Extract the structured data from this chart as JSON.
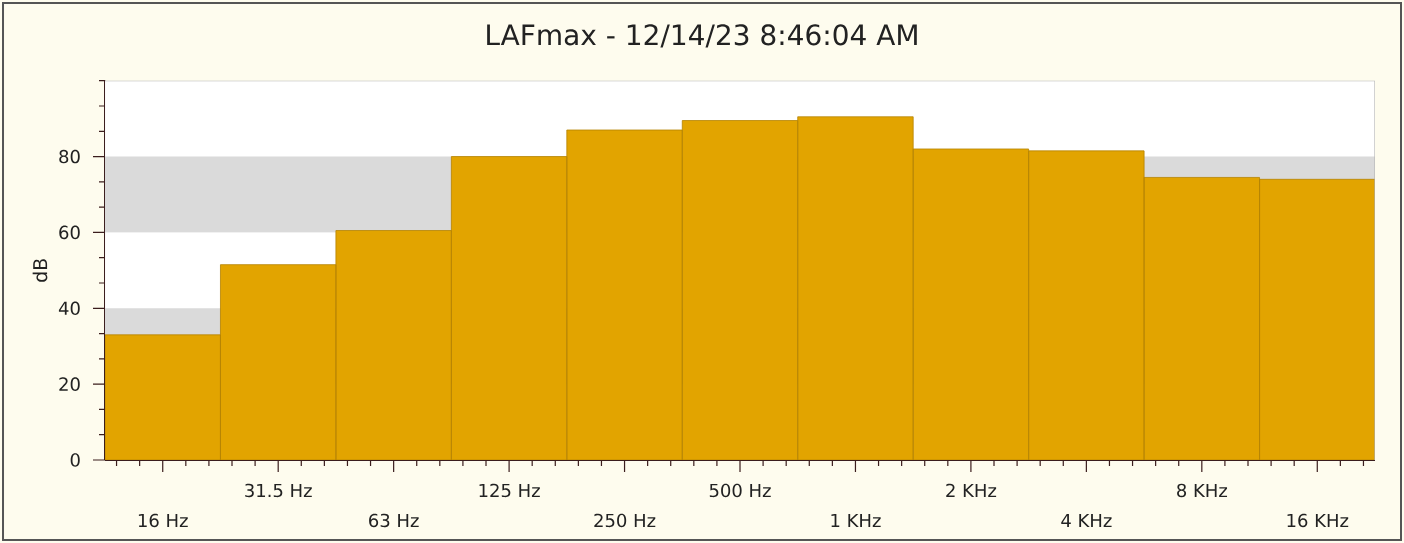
{
  "chart_data": {
    "type": "bar",
    "title": "LAFmax - 12/14/23 8:46:04 AM",
    "ylabel": "dB",
    "categories": [
      "16 Hz",
      "31.5 Hz",
      "63 Hz",
      "125 Hz",
      "250 Hz",
      "500 Hz",
      "1 KHz",
      "2 KHz",
      "4 KHz",
      "8 KHz",
      "16 KHz"
    ],
    "values": [
      33,
      51.5,
      60.5,
      80,
      87,
      89.5,
      90.5,
      82,
      81.5,
      74.5,
      74
    ],
    "color": "#e2a400",
    "ylim": [
      0,
      100
    ],
    "yticks": [
      0,
      20,
      40,
      60,
      80
    ],
    "bands": [
      {
        "axis": "y",
        "from": 20,
        "to": 40,
        "color": "#dadada"
      },
      {
        "axis": "y",
        "from": 60,
        "to": 80,
        "color": "#dadada"
      }
    ]
  }
}
